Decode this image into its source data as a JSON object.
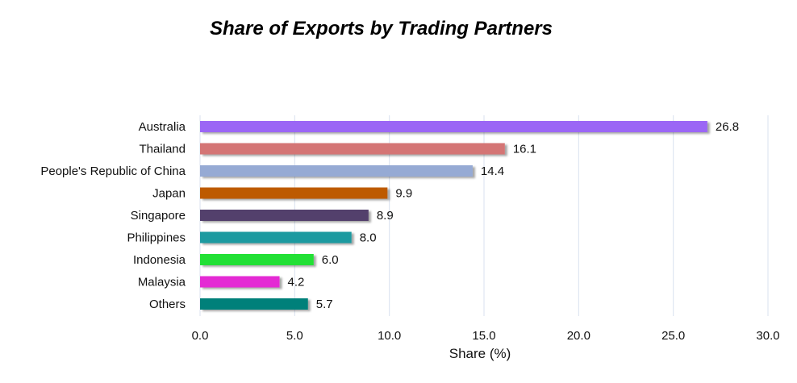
{
  "chart_data": {
    "type": "bar",
    "orientation": "horizontal",
    "title": "Share of Exports by Trading Partners",
    "xlabel": "Share (%)",
    "ylabel": "",
    "xlim": [
      0,
      30
    ],
    "xticks": [
      "0.0",
      "5.0",
      "10.0",
      "15.0",
      "20.0",
      "25.0",
      "30.0"
    ],
    "grid": "vertical",
    "legend": "none",
    "categories": [
      "Australia",
      "Thailand",
      "People's Republic of China",
      "Japan",
      "Singapore",
      "Philippines",
      "Indonesia",
      "Malaysia",
      "Others"
    ],
    "values": [
      26.8,
      16.1,
      14.4,
      9.9,
      8.9,
      8.0,
      6.0,
      4.2,
      5.7
    ],
    "value_labels": [
      "26.8",
      "16.1",
      "14.4",
      "9.9",
      "8.9",
      "8.0",
      "6.0",
      "4.2",
      "5.7"
    ],
    "colors": [
      "#9b66f5",
      "#d47474",
      "#96aad4",
      "#bd5a05",
      "#533f6c",
      "#1e9aa0",
      "#22e036",
      "#e42cd4",
      "#06807a"
    ]
  }
}
